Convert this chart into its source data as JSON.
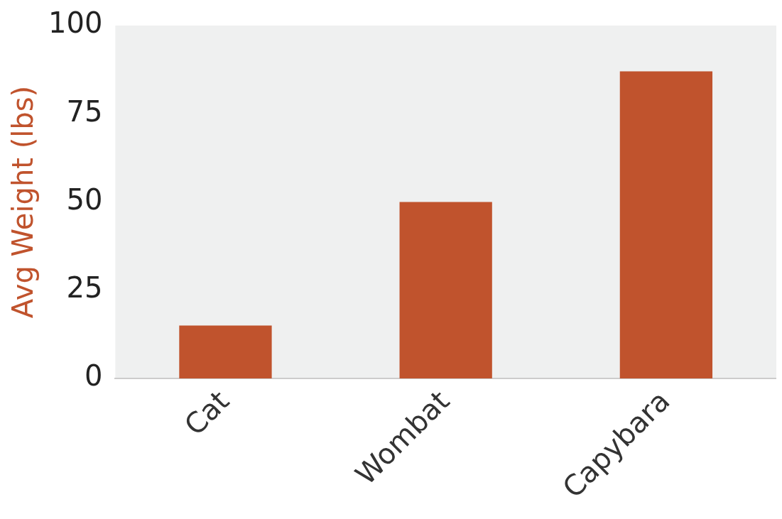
{
  "chart_data": {
    "type": "bar",
    "ylabel": "Avg Weight (lbs)",
    "categories": [
      "Cat",
      "Wombat",
      "Capybara"
    ],
    "values": [
      15,
      50,
      87
    ],
    "color": "#c0532d",
    "ylim": [
      0,
      100
    ],
    "yticks": [
      0,
      25,
      50,
      75,
      100
    ],
    "grid": false
  }
}
